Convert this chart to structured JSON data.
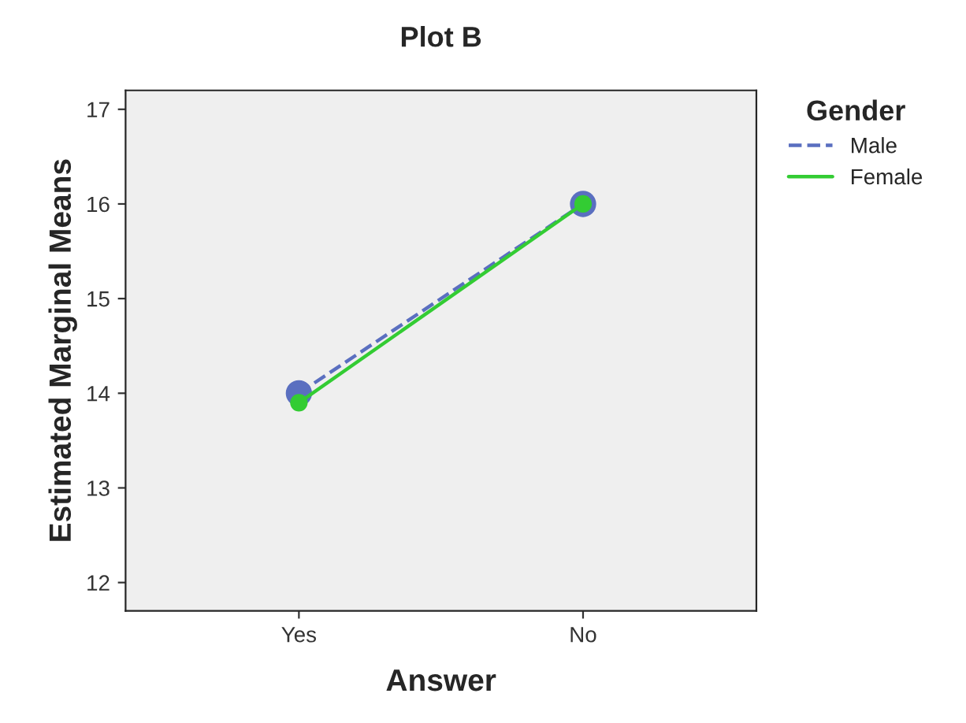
{
  "chart_data": {
    "type": "line",
    "title": "Plot B",
    "xlabel": "Answer",
    "ylabel": "Estimated Marginal Means",
    "legend_title": "Gender",
    "categories": [
      "Yes",
      "No"
    ],
    "series": [
      {
        "name": "Male",
        "color": "#5a6fc0",
        "values": [
          14.0,
          16.0
        ],
        "line_style": "dashed"
      },
      {
        "name": "Female",
        "color": "#33cc33",
        "values": [
          13.9,
          16.0
        ],
        "line_style": "solid"
      }
    ],
    "ylim": [
      11.7,
      17.2
    ],
    "yticks": [
      12,
      13,
      14,
      15,
      16,
      17
    ],
    "grid": false,
    "legend": "top right",
    "marker": "circle"
  }
}
